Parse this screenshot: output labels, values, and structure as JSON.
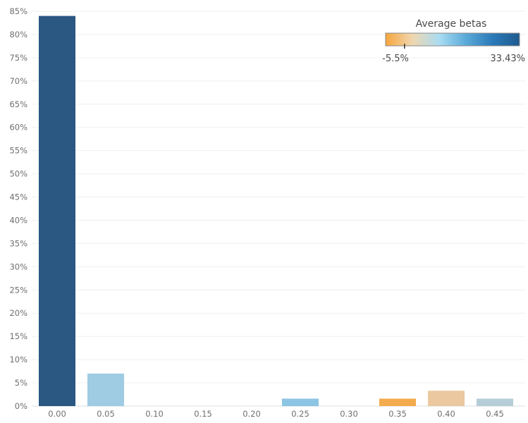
{
  "chart_data": {
    "type": "bar",
    "categories": [
      "0.00",
      "0.05",
      "0.10",
      "0.15",
      "0.20",
      "0.25",
      "0.30",
      "0.35",
      "0.40",
      "0.45"
    ],
    "values": [
      84.0,
      7.0,
      0.0,
      0.0,
      0.0,
      1.6,
      0.0,
      1.6,
      3.3,
      1.6
    ],
    "bar_colors": [
      "#2b5783",
      "#9fcbe3",
      null,
      null,
      null,
      "#8cc4e3",
      null,
      "#f3ab4d",
      "#ebc89f",
      "#b5cdd6"
    ],
    "y_ticks": [
      "0%",
      "5%",
      "10%",
      "15%",
      "20%",
      "25%",
      "30%",
      "35%",
      "40%",
      "45%",
      "50%",
      "55%",
      "60%",
      "65%",
      "70%",
      "75%",
      "80%",
      "85%"
    ],
    "y_tick_values": [
      0,
      5,
      10,
      15,
      20,
      25,
      30,
      35,
      40,
      45,
      50,
      55,
      60,
      65,
      70,
      75,
      80,
      85
    ],
    "ylim": [
      0,
      85
    ],
    "grid": true,
    "title": "",
    "xlabel": "",
    "ylabel": "",
    "legend": {
      "title": "Average betas",
      "min_label": "-5.5%",
      "max_label": "33.43%",
      "min_value": -5.5,
      "max_value": 33.43,
      "marker_value": 0,
      "placement": "top-right",
      "gradient_colors": [
        "#f6a53c",
        "#f0d7b0",
        "#a9dcf2",
        "#5aaad9",
        "#2a79b8",
        "#1e5a8f"
      ]
    }
  }
}
